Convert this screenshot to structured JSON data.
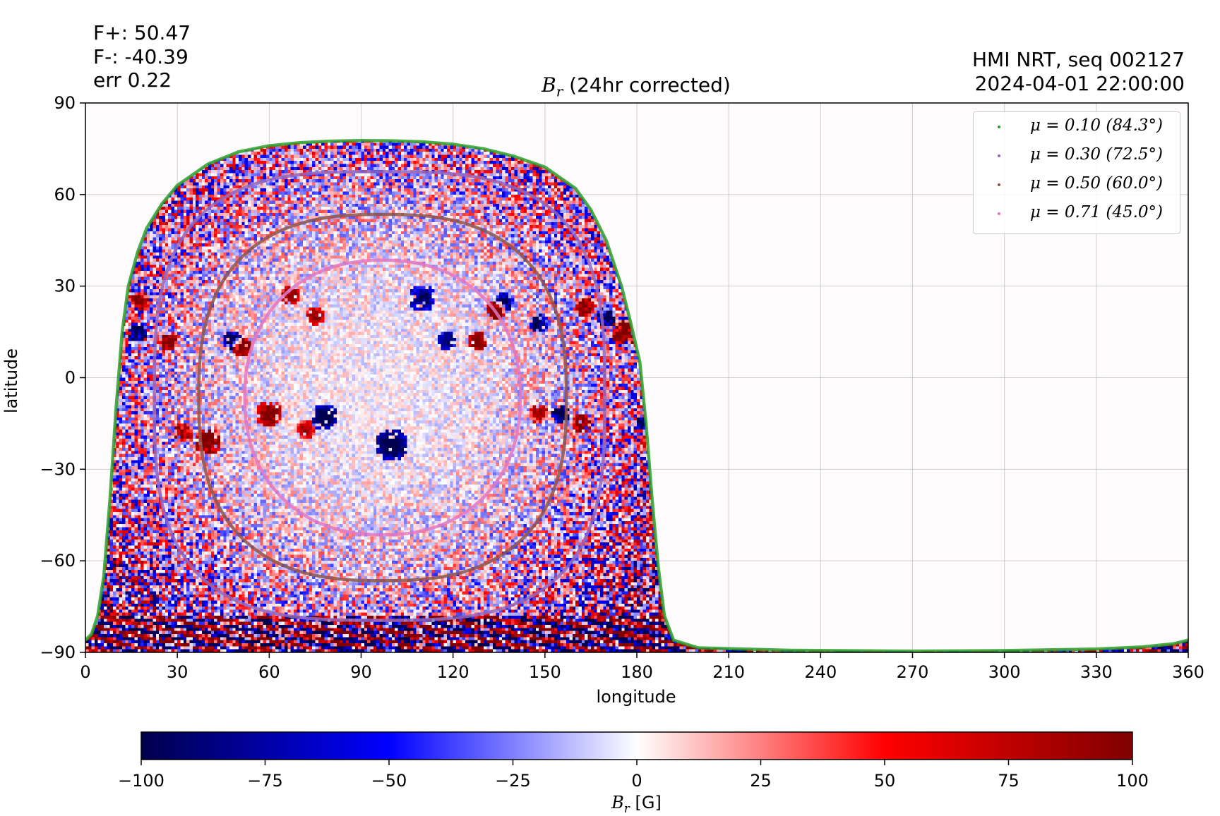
{
  "header": {
    "flux_lines": [
      "F+: 50.47",
      "F-: -40.39",
      "err 0.22"
    ],
    "source_lines": [
      "HMI NRT, seq 002127",
      "2024-04-01 22:00:00"
    ]
  },
  "chart_data": {
    "type": "heatmap",
    "title_symbol": "B",
    "title_subscript": "r",
    "title_suffix": " (24hr corrected)",
    "xlabel": "longitude",
    "ylabel": "latitude",
    "xlim": [
      0,
      360
    ],
    "ylim": [
      -90,
      90
    ],
    "xticks": [
      0,
      30,
      60,
      90,
      120,
      150,
      180,
      210,
      240,
      270,
      300,
      330,
      360
    ],
    "yticks": [
      -90,
      -60,
      -30,
      0,
      30,
      60,
      90
    ],
    "xtick_labels": [
      "0",
      "30",
      "60",
      "90",
      "120",
      "150",
      "180",
      "210",
      "240",
      "270",
      "300",
      "330",
      "360"
    ],
    "ytick_labels": [
      "−90",
      "−60",
      "−30",
      "0",
      "30",
      "60",
      "90"
    ],
    "grid": true,
    "observed_region": {
      "top_boundary": [
        [
          0,
          -86
        ],
        [
          2,
          -84
        ],
        [
          4,
          -78
        ],
        [
          6,
          -65
        ],
        [
          8,
          -40
        ],
        [
          10,
          -10
        ],
        [
          12,
          15
        ],
        [
          14,
          30
        ],
        [
          17,
          41
        ],
        [
          20,
          49
        ],
        [
          25,
          57
        ],
        [
          30,
          63
        ],
        [
          40,
          70
        ],
        [
          50,
          74
        ],
        [
          60,
          76
        ],
        [
          70,
          77
        ],
        [
          80,
          77.5
        ],
        [
          90,
          77.7
        ],
        [
          100,
          77.6
        ],
        [
          110,
          77.3
        ],
        [
          120,
          76.5
        ],
        [
          130,
          75
        ],
        [
          140,
          72.5
        ],
        [
          150,
          69
        ],
        [
          160,
          62
        ],
        [
          165,
          55
        ],
        [
          170,
          45
        ],
        [
          175,
          30
        ],
        [
          178,
          18
        ],
        [
          181,
          5
        ],
        [
          183,
          -15
        ],
        [
          185,
          -40
        ],
        [
          187,
          -62
        ],
        [
          189,
          -78
        ],
        [
          192,
          -86
        ],
        [
          200,
          -88.5
        ]
      ],
      "bottom_boundary_lat": -90,
      "tail_boundary": [
        [
          200,
          -88.5
        ],
        [
          230,
          -89.3
        ],
        [
          270,
          -89.6
        ],
        [
          300,
          -89.4
        ],
        [
          330,
          -88.9
        ],
        [
          345,
          -88.2
        ],
        [
          355,
          -87.2
        ],
        [
          360,
          -86
        ]
      ],
      "center_lon": 95,
      "center_lat": -5
    },
    "active_regions": [
      {
        "lon": 17,
        "lat": 15,
        "value": -90,
        "size": 3
      },
      {
        "lon": 18,
        "lat": 25,
        "value": 85,
        "size": 3
      },
      {
        "lon": 27,
        "lat": 12,
        "value": 80,
        "size": 3
      },
      {
        "lon": 32,
        "lat": -18,
        "value": 70,
        "size": 3
      },
      {
        "lon": 40,
        "lat": -21,
        "value": 85,
        "size": 4
      },
      {
        "lon": 48,
        "lat": 12,
        "value": -75,
        "size": 3
      },
      {
        "lon": 51,
        "lat": 10,
        "value": 90,
        "size": 3
      },
      {
        "lon": 60,
        "lat": -12,
        "value": 80,
        "size": 4
      },
      {
        "lon": 67,
        "lat": 27,
        "value": 75,
        "size": 3
      },
      {
        "lon": 75,
        "lat": 20,
        "value": 70,
        "size": 3
      },
      {
        "lon": 78,
        "lat": -13,
        "value": -90,
        "size": 4
      },
      {
        "lon": 72,
        "lat": -17,
        "value": 60,
        "size": 3
      },
      {
        "lon": 100,
        "lat": -22,
        "value": -85,
        "size": 5
      },
      {
        "lon": 110,
        "lat": 26,
        "value": -70,
        "size": 4
      },
      {
        "lon": 118,
        "lat": 12,
        "value": -75,
        "size": 3
      },
      {
        "lon": 128,
        "lat": 12,
        "value": 85,
        "size": 3
      },
      {
        "lon": 134,
        "lat": 22,
        "value": 90,
        "size": 3
      },
      {
        "lon": 137,
        "lat": 25,
        "value": -75,
        "size": 3
      },
      {
        "lon": 148,
        "lat": 18,
        "value": -70,
        "size": 3
      },
      {
        "lon": 148,
        "lat": -12,
        "value": 70,
        "size": 3
      },
      {
        "lon": 155,
        "lat": -12,
        "value": -80,
        "size": 3
      },
      {
        "lon": 162,
        "lat": -15,
        "value": 85,
        "size": 3
      },
      {
        "lon": 163,
        "lat": 23,
        "value": 80,
        "size": 3
      },
      {
        "lon": 170,
        "lat": 20,
        "value": -80,
        "size": 3
      },
      {
        "lon": 176,
        "lat": 15,
        "value": 95,
        "size": 4
      },
      {
        "lon": 182,
        "lat": -15,
        "value": -80,
        "size": 2
      }
    ],
    "series": [
      {
        "name": "μ = 0.10 (84.3°)",
        "color": "#2ca02c",
        "curve": "boundary"
      },
      {
        "name": "μ = 0.30 (72.5°)",
        "color": "#9467bd",
        "rx": 73.5,
        "ry": 73.5,
        "cx": 96,
        "cy": -6,
        "p": 3.1
      },
      {
        "name": "μ = 0.50 (60.0°)",
        "color": "#8c564b",
        "rx": 60,
        "ry": 60,
        "cx": 97,
        "cy": -6.5,
        "p": 2.6
      },
      {
        "name": "μ = 0.71 (45.0°)",
        "color": "#e377c2",
        "rx": 45,
        "ry": 45,
        "cx": 97,
        "cy": -6.5,
        "p": 2.2
      }
    ],
    "legend_position": "upper right",
    "colorbar": {
      "min": -100,
      "max": 100,
      "ticks": [
        -100,
        -75,
        -50,
        -25,
        0,
        25,
        50,
        75,
        100
      ],
      "tick_labels": [
        "−100",
        "−75",
        "−50",
        "−25",
        "0",
        "25",
        "50",
        "75",
        "100"
      ],
      "label_symbol": "B",
      "label_subscript": "r",
      "label_suffix": " [G]",
      "colormap": "seismic",
      "stops": [
        "#00004c",
        "#0000ff",
        "#ffffff",
        "#ff0000",
        "#7f0000"
      ]
    }
  }
}
